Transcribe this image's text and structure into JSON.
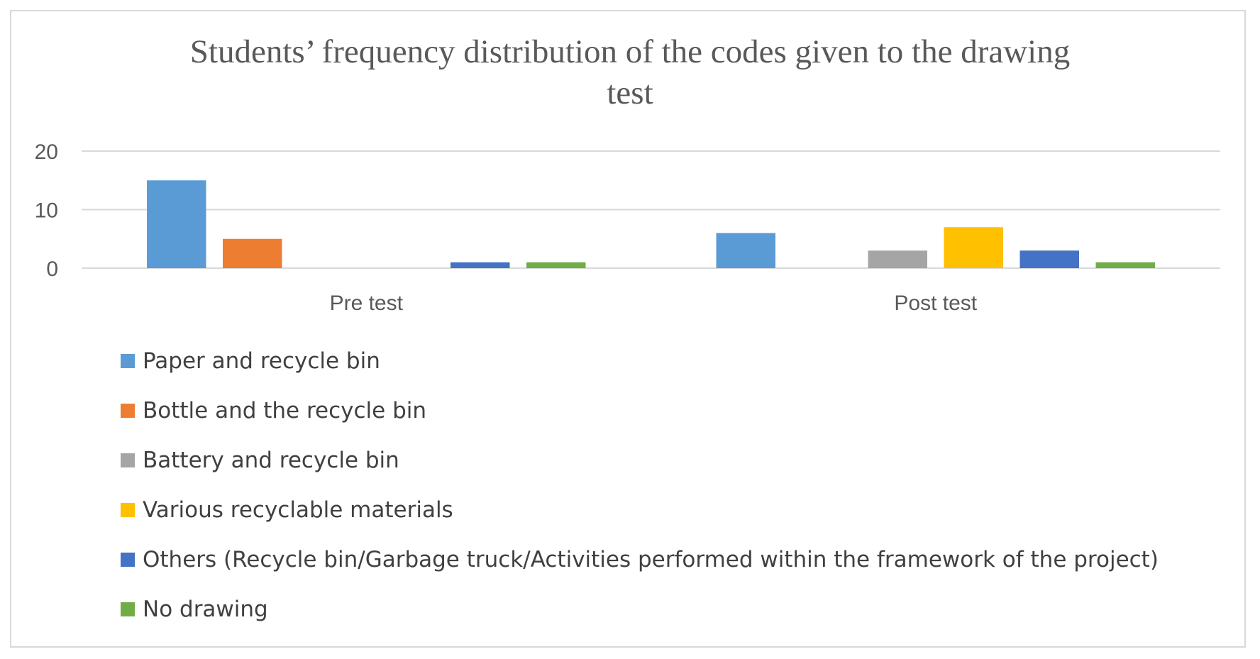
{
  "chart_data": {
    "type": "bar",
    "title": "Students’ frequency distribution of the codes given to the drawing test",
    "title_lines": [
      "Students’ frequency distribution of the codes given to the drawing",
      "test"
    ],
    "categories": [
      "Pre test",
      "Post test"
    ],
    "series": [
      {
        "name": "Paper and recycle bin",
        "color": "#5b9bd5",
        "values": [
          15,
          6
        ]
      },
      {
        "name": "Bottle and the recycle bin",
        "color": "#ed7d31",
        "values": [
          5,
          0
        ]
      },
      {
        "name": "Battery and recycle bin",
        "color": "#a5a5a5",
        "values": [
          0,
          3
        ]
      },
      {
        "name": "Various recyclable materials",
        "color": "#ffc000",
        "values": [
          0,
          7
        ]
      },
      {
        "name": "Others (Recycle bin/Garbage truck/Activities performed within the framework of the project)",
        "color": "#4472c4",
        "values": [
          1,
          3
        ]
      },
      {
        "name": "No drawing",
        "color": "#70ad47",
        "values": [
          1,
          1
        ]
      }
    ],
    "ylim": [
      0,
      20
    ],
    "yticks": [
      0,
      10,
      20
    ],
    "xlabel": "",
    "ylabel": "",
    "grid": true,
    "legend_position": "bottom"
  }
}
